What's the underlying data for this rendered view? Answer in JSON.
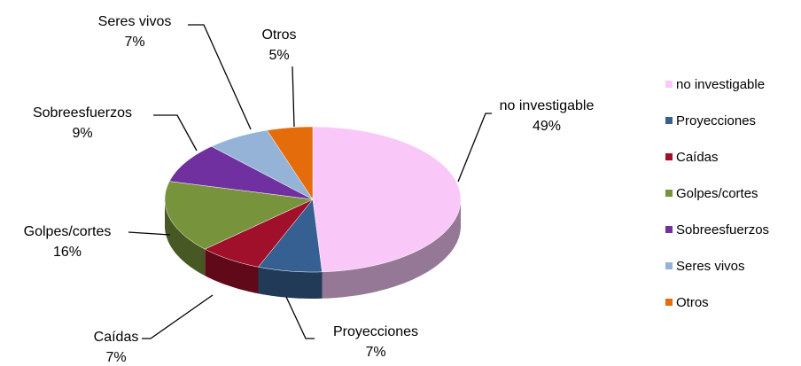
{
  "chart_data": {
    "type": "pie",
    "categories": [
      "no investigable",
      "Proyecciones",
      "Caídas",
      "Golpes/cortes",
      "Sobreesfuerzos",
      "Seres vivos",
      "Otros"
    ],
    "values": [
      49,
      7,
      7,
      16,
      9,
      7,
      5
    ],
    "value_labels": [
      "49%",
      "7%",
      "7%",
      "16%",
      "9%",
      "7%",
      "5%"
    ],
    "colors": [
      "#F9C8F9",
      "#376092",
      "#A0102A",
      "#77933C",
      "#7030A0",
      "#95B3D7",
      "#E46C0A"
    ],
    "legend": "right"
  }
}
